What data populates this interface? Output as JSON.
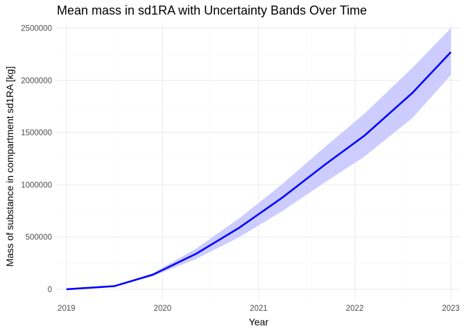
{
  "chart_data": {
    "type": "line",
    "title": "Mean mass in sd1RA with Uncertainty Bands Over Time",
    "xlabel": "Year",
    "ylabel": "Mass of substance in compartment sd1RA [kg]",
    "x_ticks": [
      "2019",
      "2020",
      "2021",
      "2022",
      "2023"
    ],
    "y_ticks": [
      "0",
      "500000",
      "1000000",
      "1500000",
      "2000000",
      "2500000"
    ],
    "xlim": [
      2018.9,
      2023.1
    ],
    "ylim": [
      -100000,
      2550000
    ],
    "grid": true,
    "line_color": "#0000ff",
    "band_color": "#ccccff",
    "series": [
      {
        "x": [
          2019.0,
          2019.5,
          2019.9,
          2020.35,
          2020.8,
          2021.25,
          2021.7,
          2022.1,
          2022.6,
          2023.0
        ],
        "y": [
          0,
          30000,
          140000,
          340000,
          590000,
          880000,
          1200000,
          1470000,
          1880000,
          2270000
        ],
        "lower": [
          0,
          28000,
          125000,
          290000,
          500000,
          750000,
          1030000,
          1270000,
          1640000,
          2050000
        ],
        "upper": [
          0,
          32000,
          155000,
          390000,
          680000,
          1010000,
          1370000,
          1680000,
          2120000,
          2500000
        ]
      }
    ]
  }
}
